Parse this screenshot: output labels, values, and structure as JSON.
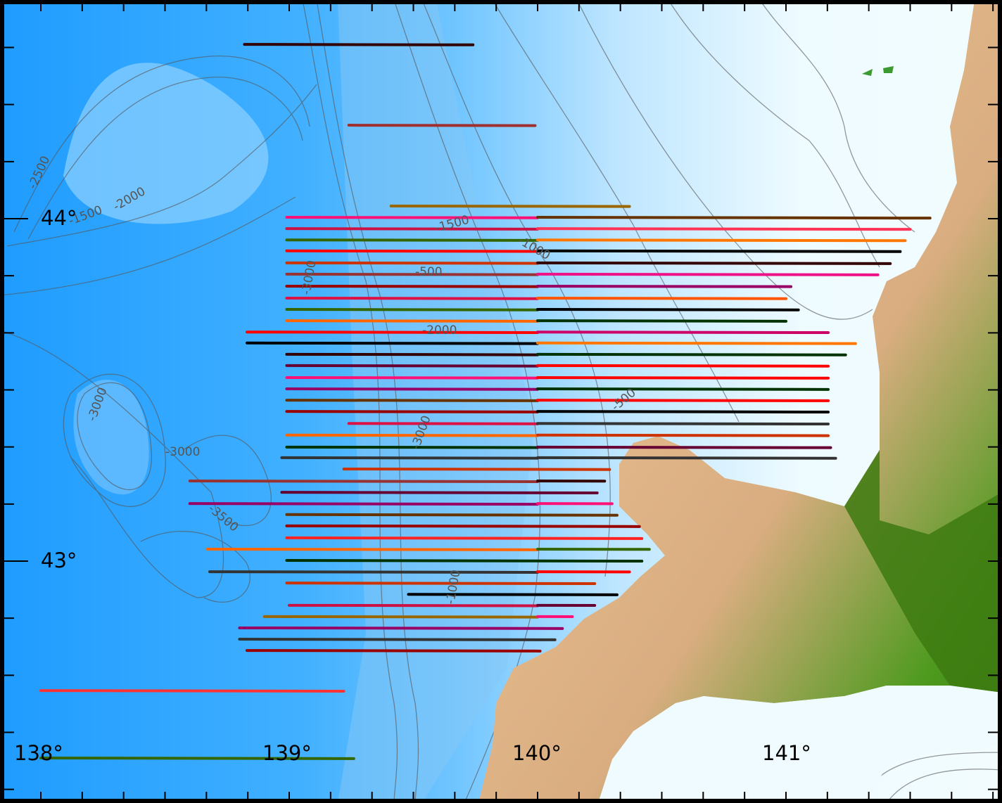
{
  "map": {
    "colors": {
      "deep_sea": "#1e9eff",
      "mid_sea": "#5cbcff",
      "shallow_sea": "#eafaff",
      "lowland": "#3cb84a",
      "highland": "#e8b88a",
      "dark_land": "#3d7a10",
      "contour": "#555555",
      "frame": "#000000"
    },
    "lat_labels": [
      {
        "value": 44,
        "text": "44°"
      },
      {
        "value": 43,
        "text": "43°"
      }
    ],
    "lon_labels": [
      {
        "value": 138,
        "text": "138°"
      },
      {
        "value": 139,
        "text": "139°"
      },
      {
        "value": 140,
        "text": "140°"
      },
      {
        "value": 141,
        "text": "141°"
      }
    ],
    "contour_labels": [
      "-2500",
      "-2000",
      "-1500",
      "-3000",
      "-3000",
      "-3500",
      "-1500",
      "-1000",
      "-500",
      "-3000",
      "-2000",
      "-500",
      "-3000",
      "-1000"
    ],
    "tracks": [
      {
        "lat": 44.509,
        "lon": [
          138.82,
          139.74
        ],
        "colors": [
          "#330000"
        ]
      },
      {
        "lat": 44.273,
        "lon": [
          139.24,
          139.99
        ],
        "colors": [
          "#a03030"
        ]
      },
      {
        "lat": 44.037,
        "lon": [
          139.41,
          140.37
        ],
        "colors": [
          "#996600"
        ]
      },
      {
        "lat": 44.004,
        "lon": [
          138.99,
          141.58
        ],
        "colors": [
          "#ff1177",
          "#663300"
        ]
      },
      {
        "lat": 43.971,
        "lon": [
          138.99,
          141.5
        ],
        "colors": [
          "#cc1144",
          "#ff3355"
        ]
      },
      {
        "lat": 43.938,
        "lon": [
          138.99,
          141.48
        ],
        "colors": [
          "#336600",
          "#ff7700"
        ]
      },
      {
        "lat": 43.906,
        "lon": [
          138.99,
          141.46
        ],
        "colors": [
          "#ff0000",
          "#000000"
        ]
      },
      {
        "lat": 43.871,
        "lon": [
          138.99,
          141.42
        ],
        "colors": [
          "#cc3300",
          "#330000"
        ]
      },
      {
        "lat": 43.838,
        "lon": [
          138.99,
          141.37
        ],
        "colors": [
          "#993333",
          "#ee1188"
        ]
      },
      {
        "lat": 43.803,
        "lon": [
          138.99,
          141.02
        ],
        "colors": [
          "#990000",
          "#990066"
        ]
      },
      {
        "lat": 43.768,
        "lon": [
          138.99,
          141.0
        ],
        "colors": [
          "#dd1144",
          "#ff5500"
        ]
      },
      {
        "lat": 43.735,
        "lon": [
          138.99,
          141.05
        ],
        "colors": [
          "#336600",
          "#000000"
        ]
      },
      {
        "lat": 43.702,
        "lon": [
          138.99,
          141.0
        ],
        "colors": [
          "#ff6600",
          "#003300"
        ]
      },
      {
        "lat": 43.669,
        "lon": [
          138.83,
          141.17
        ],
        "colors": [
          "#ff0000",
          "#cc0066"
        ]
      },
      {
        "lat": 43.637,
        "lon": [
          138.83,
          141.28
        ],
        "colors": [
          "#000000",
          "#ff7700"
        ]
      },
      {
        "lat": 43.604,
        "lon": [
          138.99,
          141.24
        ],
        "colors": [
          "#330000",
          "#003300"
        ]
      },
      {
        "lat": 43.571,
        "lon": [
          138.99,
          141.17
        ],
        "colors": [
          "#660033",
          "#ff0000"
        ]
      },
      {
        "lat": 43.536,
        "lon": [
          138.99,
          141.17
        ],
        "colors": [
          "#ff1177",
          "#ff0000"
        ]
      },
      {
        "lat": 43.503,
        "lon": [
          138.99,
          141.17
        ],
        "colors": [
          "#990066",
          "#003300"
        ]
      },
      {
        "lat": 43.47,
        "lon": [
          138.99,
          141.17
        ],
        "colors": [
          "#663300",
          "#ff0000"
        ]
      },
      {
        "lat": 43.437,
        "lon": [
          138.99,
          141.17
        ],
        "colors": [
          "#990000",
          "#000000"
        ]
      },
      {
        "lat": 43.402,
        "lon": [
          139.24,
          141.17
        ],
        "colors": [
          "#dd1144",
          "#333333"
        ]
      },
      {
        "lat": 43.368,
        "lon": [
          138.99,
          141.17
        ],
        "colors": [
          "#ff6600",
          "#cc3300"
        ]
      },
      {
        "lat": 43.333,
        "lon": [
          138.99,
          141.18
        ],
        "colors": [
          "#003300",
          "#660033"
        ]
      },
      {
        "lat": 43.302,
        "lon": [
          138.97,
          141.2
        ],
        "colors": [
          "#333333",
          "#333333"
        ]
      },
      {
        "lat": 43.269,
        "lon": [
          139.22,
          140.29
        ],
        "colors": [
          "#cc3300"
        ]
      },
      {
        "lat": 43.234,
        "lon": [
          138.6,
          140.27
        ],
        "colors": [
          "#993333",
          "#330000"
        ]
      },
      {
        "lat": 43.201,
        "lon": [
          138.97,
          140.24
        ],
        "colors": [
          "#660033"
        ]
      },
      {
        "lat": 43.168,
        "lon": [
          138.6,
          140.3
        ],
        "colors": [
          "#990066",
          "#ff1177"
        ]
      },
      {
        "lat": 43.136,
        "lon": [
          138.99,
          140.32
        ],
        "colors": [
          "#663300"
        ]
      },
      {
        "lat": 43.103,
        "lon": [
          138.99,
          140.41
        ],
        "colors": [
          "#990000"
        ]
      },
      {
        "lat": 43.068,
        "lon": [
          138.99,
          140.42
        ],
        "colors": [
          "#ff2222"
        ]
      },
      {
        "lat": 43.035,
        "lon": [
          138.67,
          140.45
        ],
        "colors": [
          "#ff6600",
          "#336600"
        ]
      },
      {
        "lat": 43.002,
        "lon": [
          138.99,
          140.42
        ],
        "colors": [
          "#003300"
        ]
      },
      {
        "lat": 42.969,
        "lon": [
          138.68,
          140.37
        ],
        "colors": [
          "#333333",
          "#ff0000"
        ]
      },
      {
        "lat": 42.936,
        "lon": [
          138.99,
          140.23
        ],
        "colors": [
          "#cc3300"
        ]
      },
      {
        "lat": 42.903,
        "lon": [
          139.48,
          140.32
        ],
        "colors": [
          "#000000"
        ]
      },
      {
        "lat": 42.871,
        "lon": [
          139.0,
          140.23
        ],
        "colors": [
          "#cc1144",
          "#660033"
        ]
      },
      {
        "lat": 42.838,
        "lon": [
          138.9,
          140.14
        ],
        "colors": [
          "#996600",
          "#ff1177"
        ]
      },
      {
        "lat": 42.805,
        "lon": [
          138.8,
          140.1
        ],
        "colors": [
          "#990066"
        ]
      },
      {
        "lat": 42.772,
        "lon": [
          138.8,
          140.07
        ],
        "colors": [
          "#333333"
        ]
      },
      {
        "lat": 42.739,
        "lon": [
          138.83,
          140.01
        ],
        "colors": [
          "#990000"
        ]
      },
      {
        "lat": 42.622,
        "lon": [
          138.0,
          139.22
        ],
        "colors": [
          "#ff3333"
        ]
      },
      {
        "lat": 42.425,
        "lon": [
          138.0,
          139.26
        ],
        "colors": [
          "#336600"
        ]
      }
    ]
  }
}
